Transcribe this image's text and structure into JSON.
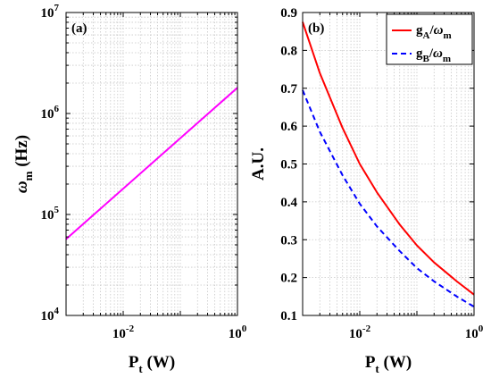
{
  "chart_data": [
    {
      "type": "line",
      "panel_label": "(a)",
      "xscale": "log",
      "yscale": "log",
      "xlim": [
        0.001,
        1
      ],
      "ylim": [
        10000,
        10000000
      ],
      "grid": true,
      "xlabel": {
        "main": "P",
        "sub": "t",
        "unit": "(W)"
      },
      "ylabel": {
        "main": "ω",
        "sub": "m",
        "unit": "(Hz)"
      },
      "xticks": [
        {
          "value": 0.01,
          "base": "10",
          "exp": "-2"
        },
        {
          "value": 1,
          "base": "10",
          "exp": "0"
        }
      ],
      "yticks": [
        {
          "value": 10000,
          "base": "10",
          "exp": "4"
        },
        {
          "value": 100000,
          "base": "10",
          "exp": "5"
        },
        {
          "value": 1000000,
          "base": "10",
          "exp": "6"
        },
        {
          "value": 10000000,
          "base": "10",
          "exp": "7"
        }
      ],
      "series": [
        {
          "color": "#ff00ff",
          "dash": "solid",
          "x": [
            0.001,
            1
          ],
          "y": [
            57000,
            1800000
          ]
        }
      ]
    },
    {
      "type": "line",
      "panel_label": "(b)",
      "xscale": "log",
      "yscale": "linear",
      "xlim": [
        0.001,
        1
      ],
      "ylim": [
        0.1,
        0.9
      ],
      "grid": true,
      "legend_position": "top-right",
      "xlabel": {
        "main": "P",
        "sub": "t",
        "unit": "(W)"
      },
      "ylabel": {
        "main": "A.U.",
        "sub": "",
        "unit": ""
      },
      "xticks": [
        {
          "value": 0.01,
          "base": "10",
          "exp": "-2"
        },
        {
          "value": 1,
          "base": "10",
          "exp": "0"
        }
      ],
      "yticks": [
        {
          "value": 0.1,
          "label": "0.1"
        },
        {
          "value": 0.2,
          "label": "0.2"
        },
        {
          "value": 0.3,
          "label": "0.3"
        },
        {
          "value": 0.4,
          "label": "0.4"
        },
        {
          "value": 0.5,
          "label": "0.5"
        },
        {
          "value": 0.6,
          "label": "0.6"
        },
        {
          "value": 0.7,
          "label": "0.7"
        },
        {
          "value": 0.8,
          "label": "0.8"
        },
        {
          "value": 0.9,
          "label": "0.9"
        }
      ],
      "series": [
        {
          "name": {
            "main": "g",
            "sub": "A",
            "sep": "/",
            "main2": "ω",
            "sub2": "m"
          },
          "color": "#ff0000",
          "dash": "solid",
          "x": [
            0.001,
            0.002,
            0.005,
            0.01,
            0.02,
            0.05,
            0.1,
            0.2,
            0.5,
            1
          ],
          "y": [
            0.875,
            0.74,
            0.595,
            0.5,
            0.425,
            0.34,
            0.285,
            0.24,
            0.19,
            0.155
          ]
        },
        {
          "name": {
            "main": "g",
            "sub": "B",
            "sep": "/",
            "main2": "ω",
            "sub2": "m"
          },
          "color": "#0000ff",
          "dash": "dashed",
          "x": [
            0.001,
            0.002,
            0.005,
            0.01,
            0.02,
            0.05,
            0.1,
            0.2,
            0.5,
            1
          ],
          "y": [
            0.695,
            0.585,
            0.47,
            0.395,
            0.335,
            0.27,
            0.225,
            0.19,
            0.15,
            0.123
          ]
        }
      ]
    }
  ]
}
